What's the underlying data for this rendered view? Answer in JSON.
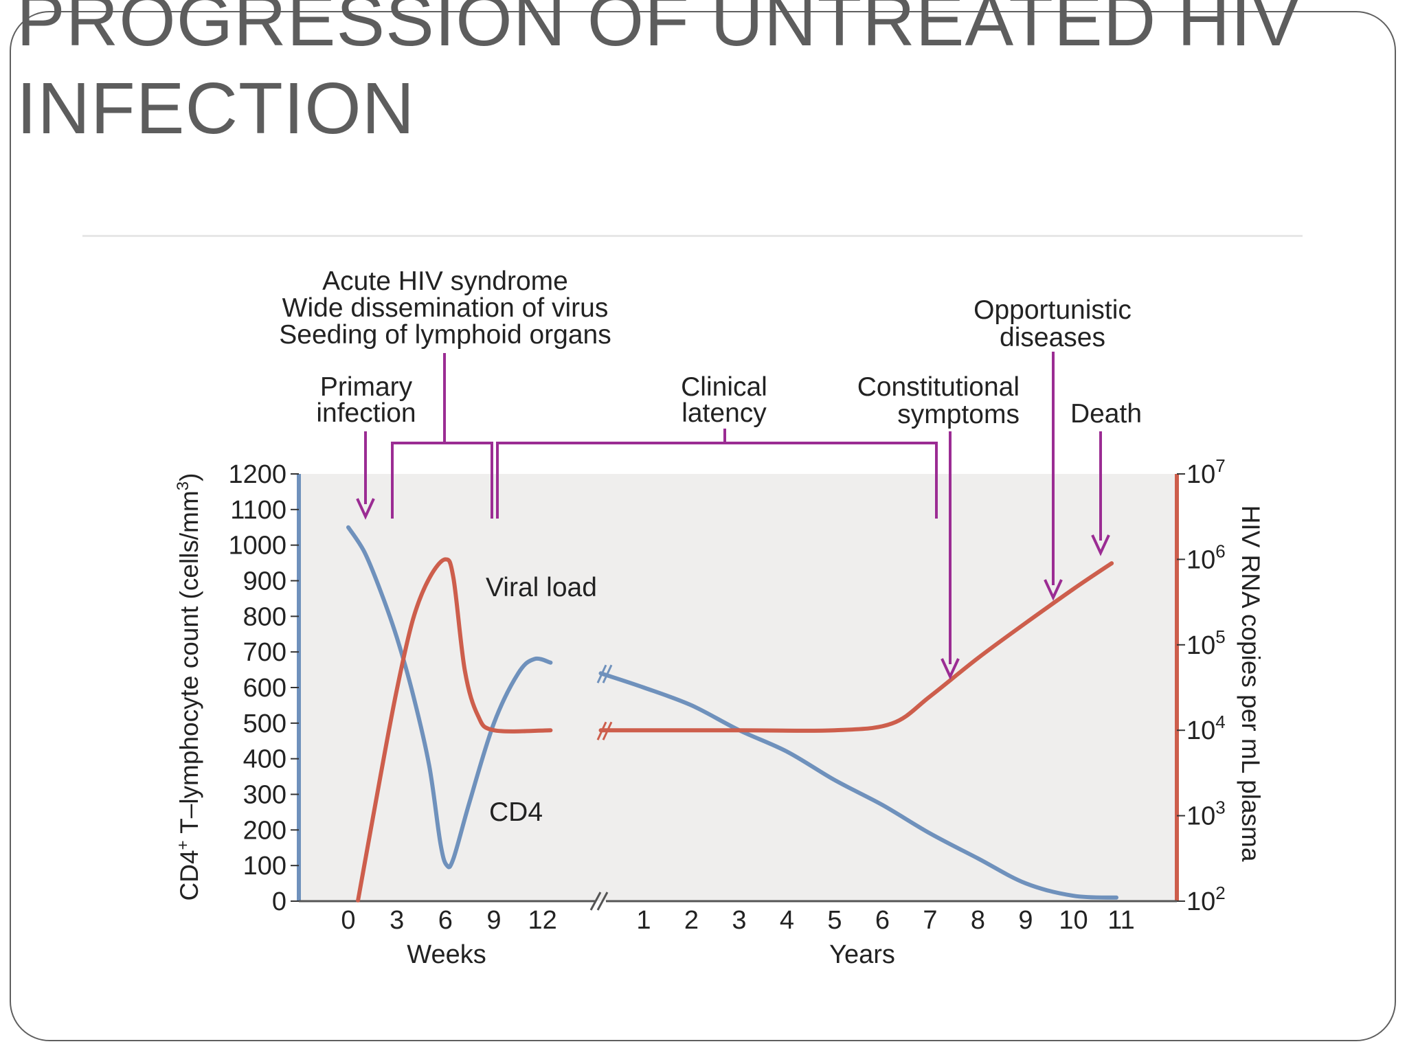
{
  "slide": {
    "title_line1": "PROGRESSION OF UNTREATED HIV",
    "title_line2": "INFECTION"
  },
  "colors": {
    "cd4": "#6f91bc",
    "viral": "#cd5e4c",
    "annotation": "#9b2c93",
    "panel": "#efeeed",
    "frame": "#5f5f5f"
  },
  "chart_data": {
    "type": "line",
    "title": "",
    "xlabel_weeks": "Weeks",
    "xlabel_years": "Years",
    "ylabel_left": "CD4⁺ T–lymphocyte count (cells/mm³)",
    "ylabel_left_parts": [
      "CD4",
      "+",
      " T–lymphocyte count (cells/mm",
      "3",
      ")"
    ],
    "ylabel_right": "HIV RNA copies per mL plasma",
    "ylim_left": [
      0,
      1200
    ],
    "left_ticks": [
      "0",
      "100",
      "200",
      "300",
      "400",
      "500",
      "600",
      "700",
      "800",
      "900",
      "1000",
      "1100",
      "1200"
    ],
    "right_ticks": [
      {
        "base": "10",
        "exp": "2"
      },
      {
        "base": "10",
        "exp": "3"
      },
      {
        "base": "10",
        "exp": "4"
      },
      {
        "base": "10",
        "exp": "5"
      },
      {
        "base": "10",
        "exp": "6"
      },
      {
        "base": "10",
        "exp": "7"
      }
    ],
    "ylim_right_log10": [
      2,
      7
    ],
    "week_ticks": [
      "0",
      "3",
      "6",
      "9",
      "12"
    ],
    "year_ticks": [
      "1",
      "2",
      "3",
      "4",
      "5",
      "6",
      "7",
      "8",
      "9",
      "10",
      "11"
    ],
    "axis_break": true,
    "series": [
      {
        "name": "CD4",
        "axis": "left",
        "weeks": [
          [
            0,
            1050
          ],
          [
            1,
            980
          ],
          [
            2,
            870
          ],
          [
            3,
            740
          ],
          [
            4,
            580
          ],
          [
            5,
            380
          ],
          [
            5.7,
            160
          ],
          [
            6.1,
            100
          ],
          [
            6.5,
            120
          ],
          [
            7.5,
            280
          ],
          [
            9,
            500
          ],
          [
            10.5,
            640
          ],
          [
            11.5,
            680
          ],
          [
            12.5,
            670
          ]
        ],
        "years": [
          [
            0.1,
            640
          ],
          [
            1,
            600
          ],
          [
            2,
            550
          ],
          [
            3,
            480
          ],
          [
            4,
            420
          ],
          [
            5,
            340
          ],
          [
            6,
            270
          ],
          [
            7,
            190
          ],
          [
            8,
            120
          ],
          [
            9,
            50
          ],
          [
            10,
            15
          ],
          [
            10.9,
            10
          ]
        ]
      },
      {
        "name": "Viral load",
        "axis": "right",
        "weeks": [
          [
            0.6,
            102
          ],
          [
            2,
            3000
          ],
          [
            3,
            30000
          ],
          [
            4,
            200000
          ],
          [
            5,
            600000
          ],
          [
            6,
            1000000
          ],
          [
            6.5,
            600000
          ],
          [
            7.2,
            50000
          ],
          [
            8,
            15000
          ],
          [
            9,
            10000
          ],
          [
            12.5,
            10000
          ]
        ],
        "years": [
          [
            0.1,
            10000
          ],
          [
            3,
            10000
          ],
          [
            5,
            10000
          ],
          [
            6.2,
            12000
          ],
          [
            7,
            25000
          ],
          [
            8,
            70000
          ],
          [
            9,
            180000
          ],
          [
            10,
            450000
          ],
          [
            10.8,
            900000
          ]
        ]
      }
    ],
    "annotations": [
      {
        "key": "primary",
        "lines": [
          "Primary",
          "infection"
        ]
      },
      {
        "key": "acute",
        "lines": [
          "Acute HIV syndrome",
          "Wide dissemination of virus",
          "Seeding of lymphoid organs"
        ]
      },
      {
        "key": "latency",
        "lines": [
          "Clinical",
          "latency"
        ]
      },
      {
        "key": "constitutional",
        "lines": [
          "Constitutional",
          "symptoms"
        ]
      },
      {
        "key": "opportunistic",
        "lines": [
          "Opportunistic",
          "diseases"
        ]
      },
      {
        "key": "death",
        "lines": [
          "Death"
        ]
      }
    ],
    "curve_labels": {
      "viral": "Viral load",
      "cd4": "CD4"
    }
  }
}
